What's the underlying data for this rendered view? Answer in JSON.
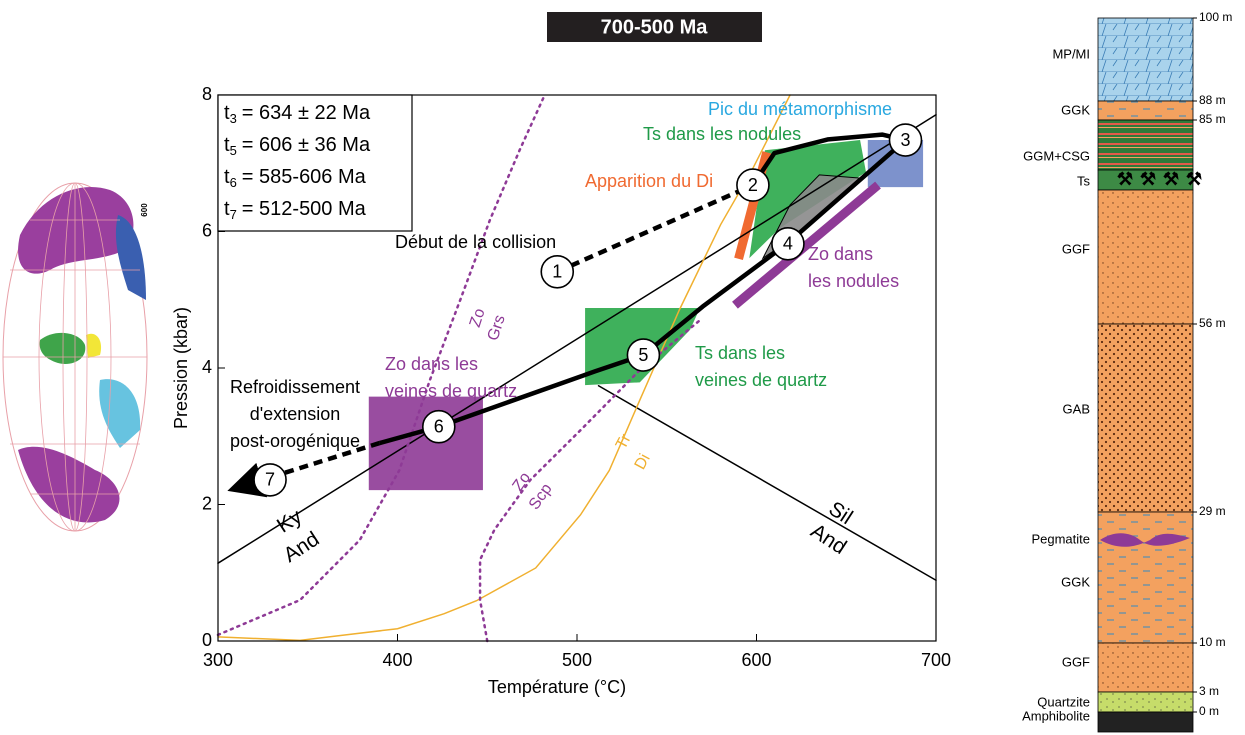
{
  "banner": "700-500 Ma",
  "globe_label": "600",
  "chart_data": {
    "type": "line",
    "xlabel": "Température (°C)",
    "ylabel": "Pression (kbar)",
    "xlim": [
      300,
      700
    ],
    "ylim": [
      0,
      8
    ],
    "xticks": [
      300,
      400,
      500,
      600,
      700
    ],
    "yticks": [
      0,
      2,
      4,
      6,
      8
    ],
    "ages": [
      {
        "symbol": "t",
        "index": "3",
        "text": "= 634 ± 22 Ma"
      },
      {
        "symbol": "t",
        "index": "5",
        "text": "= 606 ± 36 Ma"
      },
      {
        "symbol": "t",
        "index": "6",
        "text": "= 585-606 Ma"
      },
      {
        "symbol": "t",
        "index": "7",
        "text": "= 512-500 Ma"
      }
    ],
    "series": [
      {
        "color": "#000000",
        "style": "dashed",
        "x": [
          489,
          598
        ],
        "y": [
          5.41,
          6.68
        ]
      },
      {
        "color": "#000000",
        "style": "solid",
        "x": [
          598,
          610,
          640,
          670,
          683
        ],
        "y": [
          6.68,
          7.15,
          7.35,
          7.42,
          7.34
        ]
      },
      {
        "color": "#000000",
        "style": "solid",
        "x": [
          683,
          617,
          570,
          537,
          510,
          423,
          390
        ],
        "y": [
          7.34,
          5.82,
          4.9,
          4.19,
          3.95,
          3.14,
          2.9
        ]
      },
      {
        "color": "#000000",
        "style": "dashed",
        "arrow": true,
        "x": [
          390,
          310
        ],
        "y": [
          2.9,
          2.24
        ]
      }
    ],
    "curves": [
      {
        "color": "#000000",
        "style": "solid",
        "x": [
          300,
          700
        ],
        "y": [
          1.14,
          7.71
        ]
      },
      {
        "color": "#000000",
        "style": "solid",
        "x": [
          512,
          700
        ],
        "y": [
          3.74,
          0.89
        ]
      },
      {
        "color": "#f0b030",
        "style": "solid",
        "x": [
          300,
          345.7,
          400,
          426,
          444,
          477,
          502,
          518,
          535,
          557,
          580,
          597.5,
          618.7
        ],
        "y": [
          0.06,
          0.01,
          0.18,
          0.4,
          0.59,
          1.07,
          1.85,
          2.5,
          3.53,
          4.85,
          6.1,
          6.9,
          8
        ]
      },
      {
        "color": "#8e3a96",
        "style": "dotted",
        "x": [
          300,
          345.7,
          379,
          401,
          418,
          435,
          451.5,
          468,
          482
        ],
        "y": [
          0.09,
          0.6,
          1.48,
          2.5,
          3.82,
          5.0,
          6.17,
          7.19,
          8
        ]
      },
      {
        "color": "#8e3a96",
        "style": "dotted",
        "x": [
          450,
          446,
          446,
          454,
          474,
          502,
          535,
          568.5
        ],
        "y": [
          0,
          0.6,
          1.19,
          1.63,
          2.36,
          3.09,
          3.97,
          4.7
        ]
      }
    ],
    "regions": [
      {
        "color": "#2aa84a",
        "x": [
          504.5,
          568.5,
          563,
          535,
          504.5
        ],
        "y": [
          4.88,
          4.88,
          4.56,
          3.79,
          3.75
        ]
      },
      {
        "color": "#2aa84a",
        "x": [
          604.7,
          657.7,
          661,
          613,
          596
        ],
        "y": [
          7.19,
          7.34,
          6.87,
          6.05,
          5.61
        ]
      },
      {
        "color": "#8a8a8a",
        "x": [
          603.6,
          618.7,
          635,
          659,
          616
        ],
        "y": [
          5.61,
          6.39,
          6.83,
          6.78,
          5.83
        ]
      },
      {
        "color": "#6f86c6",
        "x": [
          662,
          692.8,
          692.8,
          662
        ],
        "y": [
          7.34,
          7.34,
          6.65,
          6.65
        ]
      },
      {
        "color": "#8e3a96",
        "x": [
          384,
          447.6,
          447.6,
          384
        ],
        "y": [
          3.58,
          3.58,
          2.21,
          2.21
        ]
      }
    ],
    "bands": [
      {
        "color": "#f06a31",
        "x": [
          590,
          605.7
        ],
        "y": [
          5.6,
          7.16
        ]
      },
      {
        "color": "#8e3a96",
        "x": [
          588,
          667.7
        ],
        "y": [
          4.92,
          6.68
        ]
      }
    ],
    "stations": [
      {
        "label": "1",
        "x": 489,
        "y": 5.41
      },
      {
        "label": "2",
        "x": 598,
        "y": 6.68
      },
      {
        "label": "3",
        "x": 683,
        "y": 7.34
      },
      {
        "label": "4",
        "x": 617.5,
        "y": 5.82
      },
      {
        "label": "5",
        "x": 537,
        "y": 4.19
      },
      {
        "label": "6",
        "x": 423,
        "y": 3.14
      },
      {
        "label": "7",
        "x": 329,
        "y": 2.36
      }
    ],
    "annotations": [
      {
        "lines": [
          "Début de la collision"
        ],
        "color": "#000000"
      },
      {
        "lines": [
          "Apparition du Di"
        ],
        "color": "#f06a31"
      },
      {
        "lines": [
          "Pic du métamorphisme"
        ],
        "color": "#29a8e0"
      },
      {
        "lines": [
          "Ts dans les nodules"
        ],
        "color": "#1f9a48"
      },
      {
        "lines": [
          "Zo dans",
          "les nodules"
        ],
        "color": "#8e3a96"
      },
      {
        "lines": [
          "Ts dans les",
          "veines de quartz"
        ],
        "color": "#1f9a48"
      },
      {
        "lines": [
          "Zo dans les",
          "veines de quartz"
        ],
        "color": "#8e3a96"
      },
      {
        "lines": [
          "Refroidissement",
          "d'extension",
          "post-orogénique"
        ],
        "color": "#000000"
      }
    ],
    "curve_labels": [
      {
        "text": "Ky",
        "color": "#000000"
      },
      {
        "text": "And",
        "color": "#000000"
      },
      {
        "text": "Sil",
        "color": "#000000"
      },
      {
        "text": "And",
        "color": "#000000"
      },
      {
        "text": "Zo",
        "color": "#8e3a96"
      },
      {
        "text": "Grs",
        "color": "#8e3a96"
      },
      {
        "text": "Zo",
        "color": "#8e3a96"
      },
      {
        "text": "Scp",
        "color": "#8e3a96"
      },
      {
        "text": "Tr",
        "color": "#f0b030"
      },
      {
        "text": "Di",
        "color": "#f0b030"
      }
    ]
  },
  "column": {
    "depths": [
      "100 m",
      "88 m",
      "85 m",
      "56 m",
      "29 m",
      "10 m",
      "3 m",
      "0 m"
    ],
    "units": [
      "MP/MI",
      "GGK",
      "GGM+CSG",
      "Ts",
      "GGF",
      "GAB",
      "Pegmatite",
      "GGK",
      "GGF",
      "Quartzite",
      "Amphibolite"
    ]
  }
}
